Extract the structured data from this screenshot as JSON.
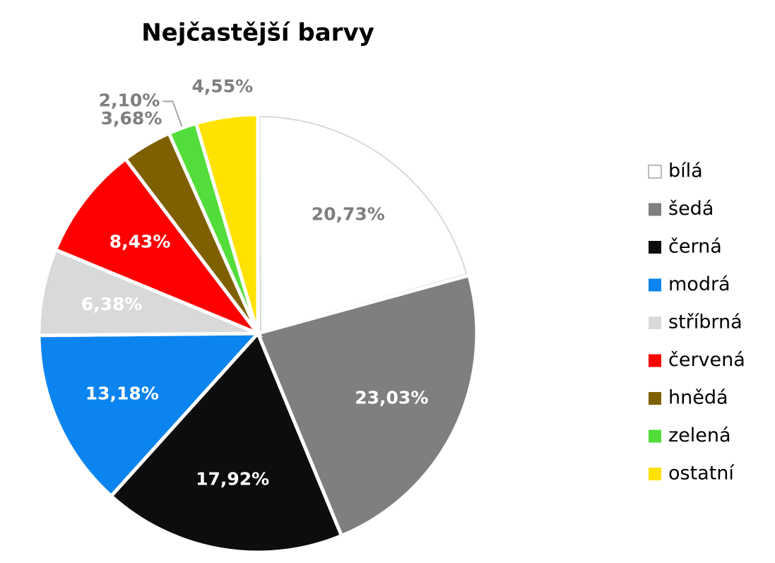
{
  "chart_data": {
    "type": "pie",
    "title": "Nejčastější barvy",
    "categories": [
      "bílá",
      "šedá",
      "černá",
      "modrá",
      "stříbrná",
      "červená",
      "hnědá",
      "zelená",
      "ostatní"
    ],
    "values": [
      20.73,
      23.03,
      17.92,
      13.18,
      6.38,
      8.43,
      3.68,
      2.1,
      4.55
    ],
    "value_labels": [
      "20,73%",
      "23,03%",
      "17,92%",
      "13,18%",
      "6,38%",
      "8,43%",
      "3,68%",
      "2,10%",
      "4,55%"
    ],
    "colors": [
      "#ffffff",
      "#7f7f7f",
      "#0d0d0d",
      "#0b84f0",
      "#d9d9d9",
      "#ff0000",
      "#7f6000",
      "#52dd3a",
      "#ffe200"
    ],
    "legend": "right"
  }
}
